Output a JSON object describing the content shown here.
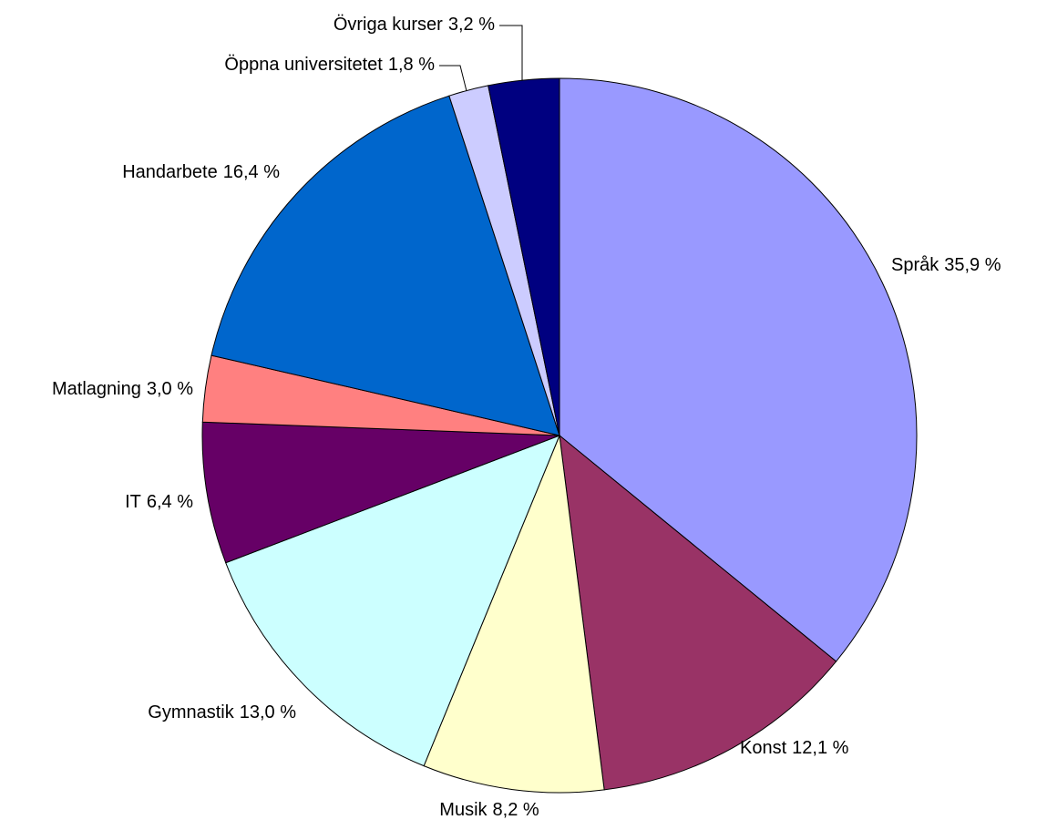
{
  "chart_data": {
    "type": "pie",
    "categories": [
      "Språk",
      "Konst",
      "Musik",
      "Gymnastik",
      "IT",
      "Matlagning",
      "Handarbete",
      "Öppna universitetet",
      "Övriga kurser"
    ],
    "values": [
      35.9,
      12.1,
      8.2,
      13.0,
      6.4,
      3.0,
      16.4,
      1.8,
      3.2
    ],
    "value_labels": [
      "35,9 %",
      "12,1 %",
      "8,2 %",
      "13,0 %",
      "6,4 %",
      "3,0 %",
      "16,4 %",
      "1,8 %",
      "3,2 %"
    ],
    "colors": [
      "#9999ff",
      "#993366",
      "#ffffcc",
      "#ccffff",
      "#660066",
      "#ff8080",
      "#0066cc",
      "#ccccff",
      "#000080"
    ]
  }
}
